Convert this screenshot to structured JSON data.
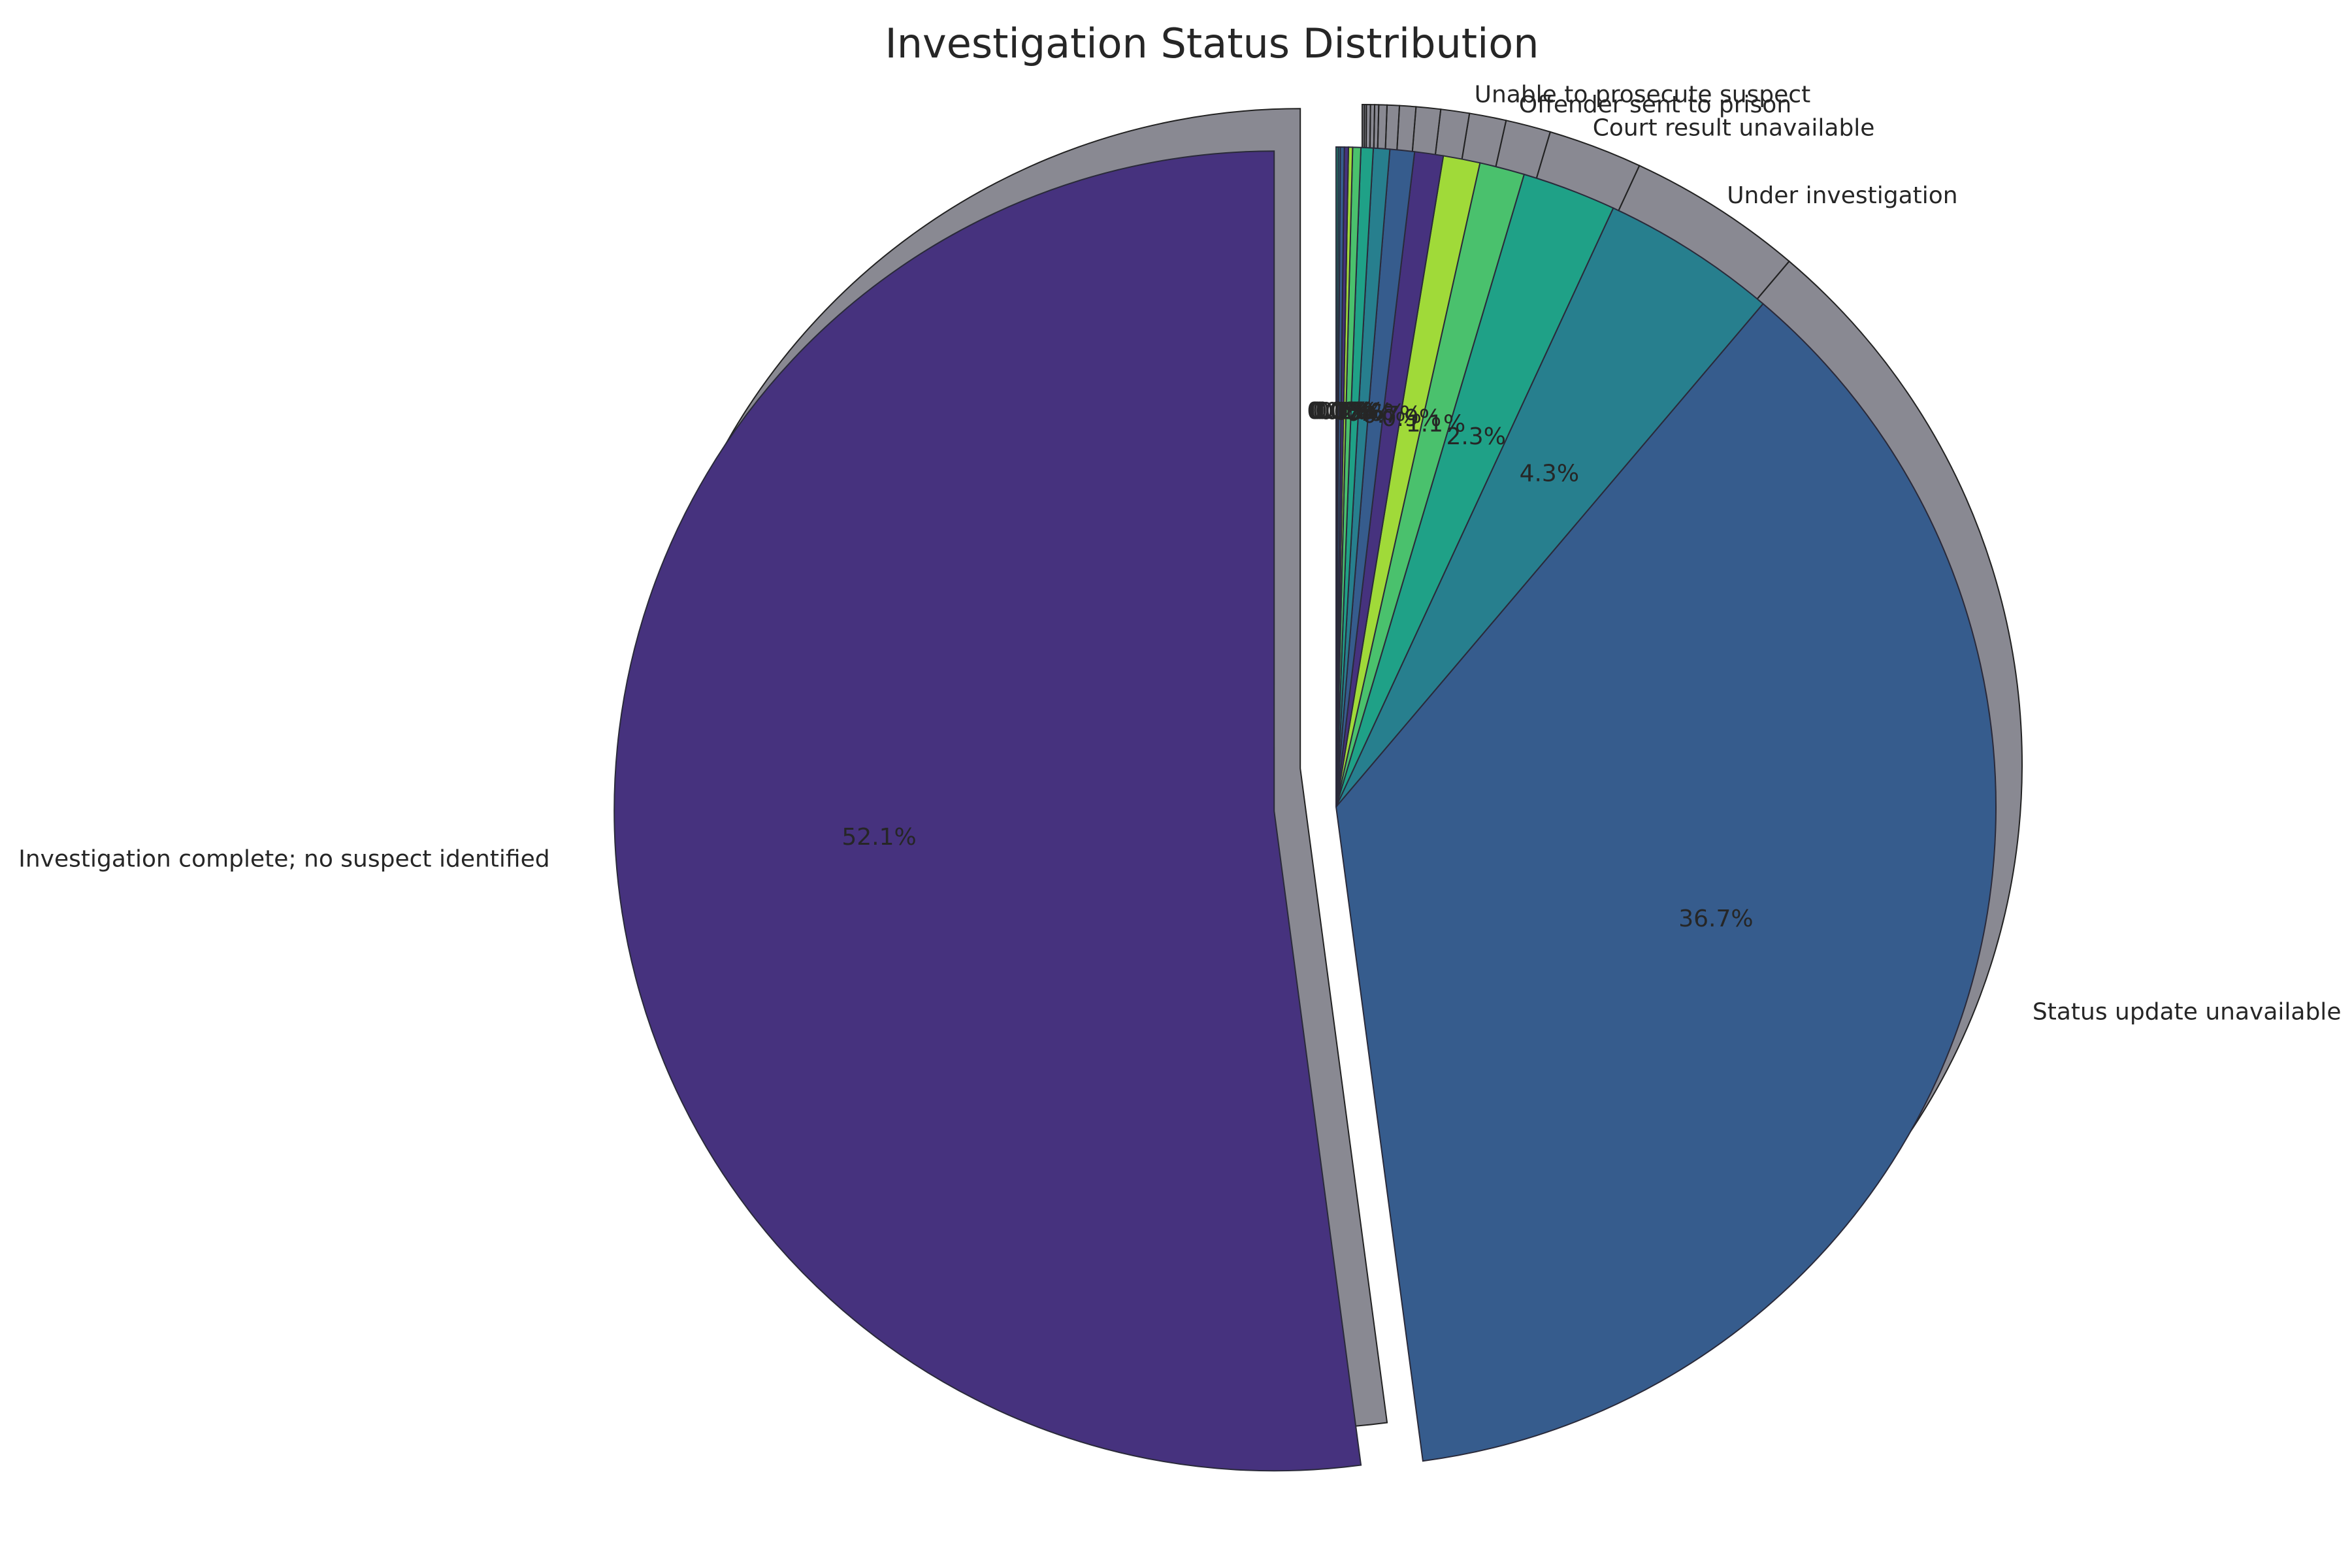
{
  "chart_data": {
    "type": "pie",
    "title": "Investigation Status Distribution",
    "start_angle": "90 (counterclockwise)",
    "shadow": true,
    "exploded": [
      "Investigation complete; no suspect identified"
    ],
    "slices": [
      {
        "label": "Investigation complete; no suspect identified",
        "value": 52.1,
        "pct_label": "52.1%",
        "color": "#46327e"
      },
      {
        "label": "Status update unavailable",
        "value": 36.7,
        "pct_label": "36.7%",
        "color": "#365c8d"
      },
      {
        "label": "Under investigation",
        "value": 4.3,
        "pct_label": "4.3%",
        "color": "#277f8e"
      },
      {
        "label": "Court result unavailable",
        "value": 2.3,
        "pct_label": "2.3%",
        "color": "#1fa187"
      },
      {
        "label": "Offender sent to prison",
        "value": 1.1,
        "pct_label": "1.1%",
        "color": "#4ac16d"
      },
      {
        "label": "Unable to prosecute suspect",
        "value": 0.9,
        "pct_label": "0.9%",
        "color": "#a0da39"
      },
      {
        "label": "",
        "value": 0.7,
        "pct_label": "0.7%",
        "color": "#46327e"
      },
      {
        "label": "",
        "value": 0.6,
        "pct_label": "0.6%",
        "color": "#365c8d"
      },
      {
        "label": "",
        "value": 0.4,
        "pct_label": "0.4%",
        "color": "#277f8e"
      },
      {
        "label": "",
        "value": 0.3,
        "pct_label": "0.3%",
        "color": "#1fa187"
      },
      {
        "label": "",
        "value": 0.2,
        "pct_label": "0.2%",
        "color": "#4ac16d"
      },
      {
        "label": "",
        "value": 0.1,
        "pct_label": "0.1%",
        "color": "#a0da39"
      },
      {
        "label": "",
        "value": 0.1,
        "pct_label": "0.1%",
        "color": "#46327e"
      },
      {
        "label": "",
        "value": 0.1,
        "pct_label": "0.1%",
        "color": "#365c8d"
      },
      {
        "label": "",
        "value": 0.05,
        "pct_label": "0.0%",
        "color": "#277f8e"
      },
      {
        "label": "",
        "value": 0.05,
        "pct_label": "0.0%",
        "color": "#1fa187"
      }
    ]
  }
}
